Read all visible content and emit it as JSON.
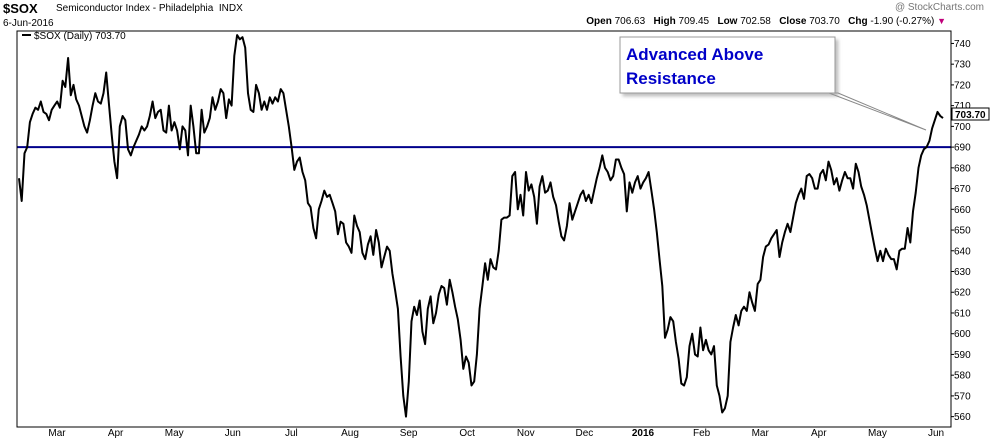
{
  "header": {
    "symbol": "$SOX",
    "name": "Semiconductor Index - Philadelphia",
    "exchange": "INDX",
    "date": "6-Jun-2016",
    "open_label": "Open",
    "open": "706.63",
    "high_label": "High",
    "high": "709.45",
    "low_label": "Low",
    "low": "702.58",
    "close_label": "Close",
    "close": "703.70",
    "chg_label": "Chg",
    "chg": "-1.90 (-0.27%)",
    "watermark": "@ StockCharts.com"
  },
  "legend": {
    "label": "$SOX (Daily) 703.70"
  },
  "price_tag": "703.70",
  "annotation": {
    "line1": "Advanced Above",
    "line2": "Resistance"
  },
  "colors": {
    "price_line": "#000000",
    "resistance": "#00008b",
    "annotation_text": "#0000c8",
    "arrow": "#c0007a"
  },
  "chart_data": {
    "type": "line",
    "title": "$SOX Semiconductor Index - Philadelphia",
    "x_tick_labels": [
      "Mar",
      "Apr",
      "May",
      "Jun",
      "Jul",
      "Aug",
      "Sep",
      "Oct",
      "Nov",
      "Dec",
      "2016",
      "Feb",
      "Mar",
      "Apr",
      "May",
      "Jun"
    ],
    "y_ticks": [
      560,
      570,
      580,
      590,
      600,
      610,
      620,
      630,
      640,
      650,
      660,
      670,
      680,
      690,
      700,
      710,
      720,
      730,
      740
    ],
    "ylim": [
      555,
      746
    ],
    "resistance_level": 690,
    "series": [
      {
        "name": "$SOX (Daily)",
        "values": [
          675,
          664,
          687,
          690,
          702,
          706,
          709,
          708,
          712,
          707,
          706,
          703,
          708,
          710,
          712,
          709,
          722,
          719,
          733,
          715,
          720,
          713,
          710,
          705,
          700,
          697,
          703,
          710,
          716,
          712,
          711,
          716,
          726,
          711,
          696,
          683,
          675,
          700,
          705,
          703,
          689,
          686,
          690,
          693,
          696,
          700,
          698,
          700,
          705,
          712,
          704,
          707,
          708,
          698,
          697,
          710,
          698,
          702,
          698,
          689,
          700,
          698,
          686,
          710,
          700,
          687,
          687,
          708,
          697,
          700,
          704,
          714,
          708,
          712,
          718,
          716,
          704,
          713,
          710,
          734,
          744,
          742,
          743,
          738,
          716,
          708,
          707,
          720,
          716,
          708,
          712,
          708,
          714,
          711,
          714,
          712,
          718,
          716,
          708,
          700,
          690,
          679,
          683,
          685,
          678,
          674,
          663,
          661,
          651,
          646,
          660,
          664,
          669,
          666,
          667,
          663,
          659,
          648,
          654,
          653,
          644,
          642,
          639,
          657,
          652,
          649,
          639,
          636,
          643,
          647,
          638,
          650,
          644,
          632,
          637,
          642,
          640,
          629,
          621,
          612,
          589,
          570,
          560,
          577,
          606,
          613,
          609,
          616,
          601,
          595,
          612,
          618,
          605,
          610,
          619,
          623,
          622,
          614,
          626,
          620,
          613,
          607,
          597,
          583,
          589,
          586,
          575,
          577,
          590,
          612,
          623,
          634,
          626,
          636,
          632,
          631,
          640,
          655,
          656,
          656,
          657,
          676,
          678,
          660,
          667,
          657,
          678,
          669,
          672,
          666,
          653,
          671,
          676,
          668,
          669,
          673,
          666,
          662,
          654,
          647,
          645,
          652,
          663,
          655,
          659,
          663,
          667,
          669,
          664,
          667,
          663,
          669,
          675,
          680,
          686,
          680,
          678,
          674,
          676,
          684,
          684,
          680,
          677,
          659,
          673,
          668,
          673,
          676,
          670,
          673,
          675,
          678,
          669,
          660,
          649,
          636,
          623,
          598,
          602,
          608,
          606,
          596,
          588,
          576,
          575,
          579,
          594,
          600,
          590,
          589,
          603,
          592,
          597,
          592,
          590,
          594,
          575,
          570,
          562,
          564,
          570,
          596,
          603,
          609,
          604,
          611,
          613,
          611,
          620,
          615,
          611,
          624,
          626,
          637,
          642,
          643,
          646,
          648,
          650,
          637,
          644,
          649,
          653,
          649,
          656,
          663,
          667,
          670,
          665,
          676,
          677,
          675,
          670,
          670,
          677,
          679,
          674,
          683,
          679,
          672,
          675,
          669,
          674,
          678,
          675,
          675,
          670,
          682,
          678,
          671,
          667,
          662,
          655,
          648,
          641,
          635,
          640,
          635,
          641,
          638,
          636,
          636,
          631,
          640,
          641,
          641,
          651,
          644,
          659,
          668,
          680,
          686,
          689,
          690,
          693,
          699,
          703,
          707,
          705,
          704
        ]
      }
    ]
  }
}
